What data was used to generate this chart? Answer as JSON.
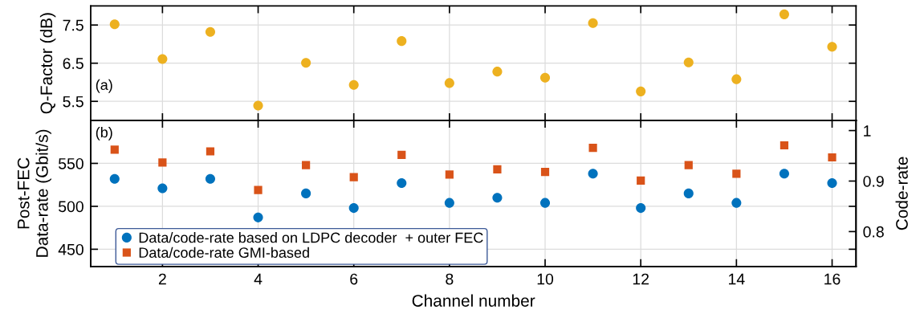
{
  "chart_data": [
    {
      "type": "scatter",
      "ylabel": "Q-Factor (dB)",
      "annotations": [
        "(a)"
      ],
      "x": [
        1,
        2,
        3,
        4,
        5,
        6,
        7,
        8,
        9,
        10,
        11,
        12,
        13,
        14,
        15,
        16
      ],
      "marker": "circle",
      "series": [
        {
          "color": "#edb120",
          "values": [
            7.52,
            6.61,
            7.32,
            5.39,
            6.51,
            5.93,
            7.08,
            5.98,
            6.28,
            6.12,
            7.55,
            5.76,
            6.52,
            6.08,
            7.78,
            6.93
          ]
        }
      ],
      "xlim": [
        0.5,
        16.5
      ],
      "xticks": [
        2,
        4,
        6,
        8,
        10,
        12,
        14,
        16
      ],
      "ylim": [
        5.0,
        8.0
      ],
      "yticks": [
        5.5,
        6.5,
        7.5
      ],
      "tick_labels": "y",
      "grid": true
    },
    {
      "type": "scatter",
      "xlabel": "Channel number",
      "ylabel": "Post-FEC\nData-rate (Gbit/s)",
      "y2label": "Code-rate",
      "annotations": [
        "(b)"
      ],
      "x": [
        1,
        2,
        3,
        4,
        5,
        6,
        7,
        8,
        9,
        10,
        11,
        12,
        13,
        14,
        15,
        16
      ],
      "series": [
        {
          "name": "Data/code-rate based on LDPC decoder  + outer FEC",
          "color": "#0072bd",
          "marker": "circle",
          "values": [
            532,
            521,
            532,
            487,
            515,
            498,
            527,
            504,
            510,
            504,
            538,
            498,
            515,
            504,
            538,
            527
          ]
        },
        {
          "name": "Data/code-rate GMI-based",
          "color": "#d95319",
          "marker": "square",
          "values": [
            566,
            551,
            564,
            519,
            548,
            534,
            560,
            537,
            543,
            540,
            568,
            530,
            548,
            538,
            571,
            557
          ]
        }
      ],
      "xlim": [
        0.5,
        16.5
      ],
      "xticks": [
        2,
        4,
        6,
        8,
        10,
        12,
        14,
        16
      ],
      "ylim": [
        430,
        600
      ],
      "yticks": [
        450,
        500,
        550
      ],
      "y2lim": [
        0.731,
        1.02
      ],
      "y2ticks": [
        0.8,
        0.9,
        1
      ],
      "grid": true,
      "legend": "bottom left"
    }
  ]
}
